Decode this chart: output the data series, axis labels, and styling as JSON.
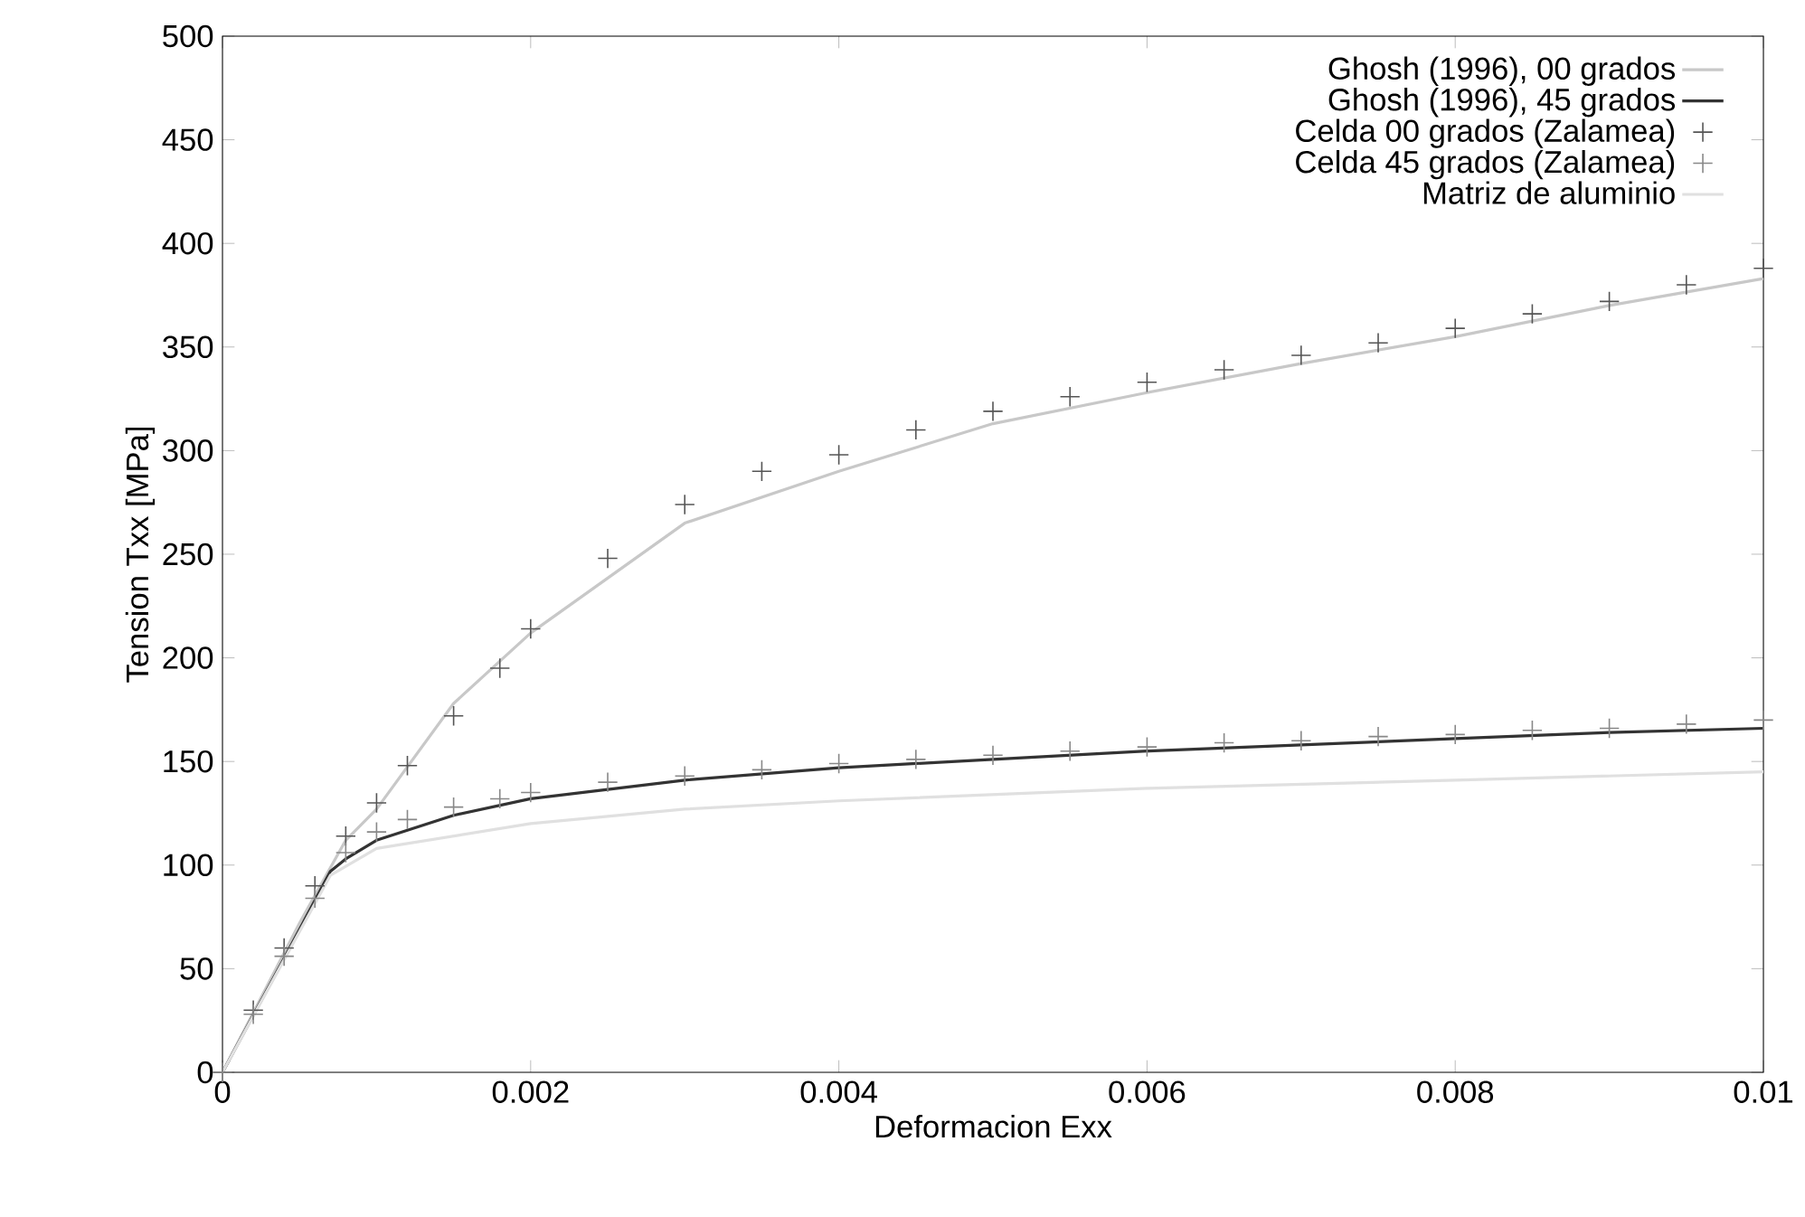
{
  "chart_data": {
    "type": "line",
    "xlabel": "Deformacion Exx",
    "ylabel": "Tension Txx [MPa]",
    "xlim": [
      0,
      0.01
    ],
    "ylim": [
      0,
      500
    ],
    "xticks": [
      0,
      0.002,
      0.004,
      0.006,
      0.008,
      0.01
    ],
    "yticks": [
      0,
      50,
      100,
      150,
      200,
      250,
      300,
      350,
      400,
      450,
      500
    ],
    "grid": false,
    "legend": "top right",
    "series": [
      {
        "name": "Ghosh (1996), 00 grados",
        "marker": "none",
        "color": "#c8c8c8",
        "x": [
          0,
          0.0005,
          0.0008,
          0.001,
          0.0015,
          0.002,
          0.003,
          0.004,
          0.005,
          0.006,
          0.007,
          0.008,
          0.009,
          0.01
        ],
        "values": [
          0,
          72,
          112,
          127,
          178,
          212,
          265,
          290,
          313,
          328,
          342,
          355,
          370,
          383
        ]
      },
      {
        "name": "Ghosh (1996), 45 grados",
        "marker": "none",
        "color": "#333333",
        "x": [
          0,
          0.0004,
          0.0007,
          0.0008,
          0.001,
          0.0015,
          0.002,
          0.003,
          0.004,
          0.005,
          0.006,
          0.007,
          0.008,
          0.009,
          0.01
        ],
        "values": [
          0,
          55,
          97,
          103,
          112,
          124,
          132,
          141,
          147,
          151,
          155,
          158,
          161,
          164,
          166
        ]
      },
      {
        "name": "Celda 00 grados (Zalamea)",
        "type": "scatter",
        "marker": "cross",
        "color": "#555555",
        "x": [
          0,
          0.0002,
          0.0004,
          0.0006,
          0.0008,
          0.001,
          0.0012,
          0.0015,
          0.0018,
          0.002,
          0.0025,
          0.003,
          0.0035,
          0.004,
          0.0045,
          0.005,
          0.0055,
          0.006,
          0.0065,
          0.007,
          0.0075,
          0.008,
          0.0085,
          0.009,
          0.0095,
          0.01
        ],
        "values": [
          0,
          30,
          60,
          90,
          114,
          130,
          148,
          172,
          195,
          214,
          248,
          274,
          290,
          298,
          310,
          319,
          326,
          333,
          339,
          346,
          352,
          359,
          366,
          372,
          380,
          388
        ]
      },
      {
        "name": "Celda 45 grados (Zalamea)",
        "type": "scatter",
        "marker": "cross",
        "color": "#888888",
        "x": [
          0,
          0.0002,
          0.0004,
          0.0006,
          0.0008,
          0.001,
          0.0012,
          0.0015,
          0.0018,
          0.002,
          0.0025,
          0.003,
          0.0035,
          0.004,
          0.0045,
          0.005,
          0.0055,
          0.006,
          0.0065,
          0.007,
          0.0075,
          0.008,
          0.0085,
          0.009,
          0.0095,
          0.01
        ],
        "values": [
          0,
          28,
          56,
          84,
          106,
          116,
          122,
          128,
          132,
          135,
          140,
          143,
          146,
          149,
          151,
          153,
          155,
          157,
          159,
          160,
          162,
          163,
          165,
          166,
          168,
          170
        ]
      },
      {
        "name": "Matriz de aluminio",
        "marker": "none",
        "color": "#e0e0e0",
        "x": [
          0,
          0.0007,
          0.001,
          0.002,
          0.003,
          0.004,
          0.006,
          0.008,
          0.01
        ],
        "values": [
          0,
          95,
          108,
          120,
          127,
          131,
          137,
          141,
          145
        ]
      }
    ]
  }
}
